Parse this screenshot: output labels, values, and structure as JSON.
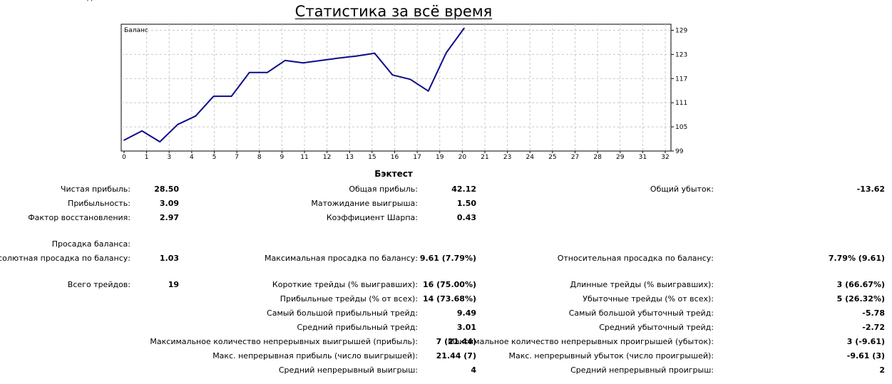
{
  "top_left_fragment": "д",
  "title": "Статистика за всё время",
  "chart_data": {
    "type": "line",
    "title": "Баланс",
    "x_ticks": [
      "0",
      "1",
      "3",
      "4",
      "5",
      "7",
      "8",
      "9",
      "11",
      "12",
      "13",
      "15",
      "16",
      "17",
      "19",
      "20",
      "21",
      "23",
      "24",
      "25",
      "27",
      "28",
      "29",
      "31",
      "32"
    ],
    "y_ticks": [
      "129",
      "123",
      "117",
      "111",
      "105",
      "99"
    ],
    "ylim": [
      99,
      130.5
    ],
    "grid": true,
    "color": "#0c0c8a",
    "series": [
      {
        "x": [
          0,
          1,
          2,
          3,
          4,
          5,
          6,
          7,
          8,
          9,
          10,
          11,
          12,
          13,
          14,
          15,
          16,
          17,
          18,
          19
        ],
        "values": [
          101.7,
          104.0,
          101.3,
          105.6,
          107.7,
          112.6,
          112.6,
          118.5,
          118.5,
          121.5,
          120.9,
          121.5,
          122.1,
          122.6,
          123.3,
          117.9,
          116.8,
          113.9,
          123.4,
          129.5
        ]
      }
    ]
  },
  "section_title": "Бэктест",
  "stats": [
    {
      "label": "Чистая прибыль:",
      "value": "28.50",
      "col": 0,
      "row": 0
    },
    {
      "label": "Прибыльность:",
      "value": "3.09",
      "col": 0,
      "row": 1
    },
    {
      "label": "Фактор восстановления:",
      "value": "2.97",
      "col": 0,
      "row": 2
    },
    {
      "label": "Общая прибыль:",
      "value": "42.12",
      "col": 1,
      "row": 0
    },
    {
      "label": "Матожидание выигрыша:",
      "value": "1.50",
      "col": 1,
      "row": 1
    },
    {
      "label": "Коэффициент Шарпа:",
      "value": "0.43",
      "col": 1,
      "row": 2
    },
    {
      "label": "Общий убыток:",
      "value": "-13.62",
      "col": 2,
      "row": 0
    },
    {
      "label": "Просадка баланса:",
      "value": "",
      "col": 0,
      "row": 3
    },
    {
      "label": "Абсолютная просадка по балансу:",
      "value": "1.03",
      "col": 0,
      "row": 4
    },
    {
      "label": "Максимальная просадка по балансу:",
      "value": "9.61 (7.79%)",
      "col": 1,
      "row": 4
    },
    {
      "label": "Относительная просадка по балансу:",
      "value": "7.79% (9.61)",
      "col": 2,
      "row": 4
    },
    {
      "label": "Всего трейдов:",
      "value": "19",
      "col": 0,
      "row": 5
    },
    {
      "label": "Короткие трейды (% выигравших):",
      "value": "16 (75.00%)",
      "col": 1,
      "row": 5
    },
    {
      "label": "Длинные трейды (% выигравших):",
      "value": "3 (66.67%)",
      "col": 2,
      "row": 5
    },
    {
      "label": "Прибыльные трейды (% от всех):",
      "value": "14 (73.68%)",
      "col": 1,
      "row": 6
    },
    {
      "label": "Убыточные трейды (% от всех):",
      "value": "5 (26.32%)",
      "col": 2,
      "row": 6
    },
    {
      "label": "Самый большой прибыльный трейд:",
      "value": "9.49",
      "col": 1,
      "row": 7
    },
    {
      "label": "Самый большой убыточный трейд:",
      "value": "-5.78",
      "col": 2,
      "row": 7
    },
    {
      "label": "Средний прибыльный трейд:",
      "value": "3.01",
      "col": 1,
      "row": 8
    },
    {
      "label": "Средний убыточный трейд:",
      "value": "-2.72",
      "col": 2,
      "row": 8
    },
    {
      "label": "Максимальное количество непрерывных выигрышей (прибыль):",
      "value": "7 (21.44)",
      "col": 1,
      "row": 9
    },
    {
      "label": "Максимальное количество непрерывных проигрышей (убыток):",
      "value": "3 (-9.61)",
      "col": 2,
      "row": 9
    },
    {
      "label": "Макс. непрерывная прибыль (число выигрышей):",
      "value": "21.44 (7)",
      "col": 1,
      "row": 10
    },
    {
      "label": "Макс. непрерывный убыток (число проигрышей):",
      "value": "-9.61 (3)",
      "col": 2,
      "row": 10
    },
    {
      "label": "Средний непрерывный выигрыш:",
      "value": "4",
      "col": 1,
      "row": 11
    },
    {
      "label": "Средний непрерывный проигрыш:",
      "value": "2",
      "col": 2,
      "row": 11
    }
  ]
}
